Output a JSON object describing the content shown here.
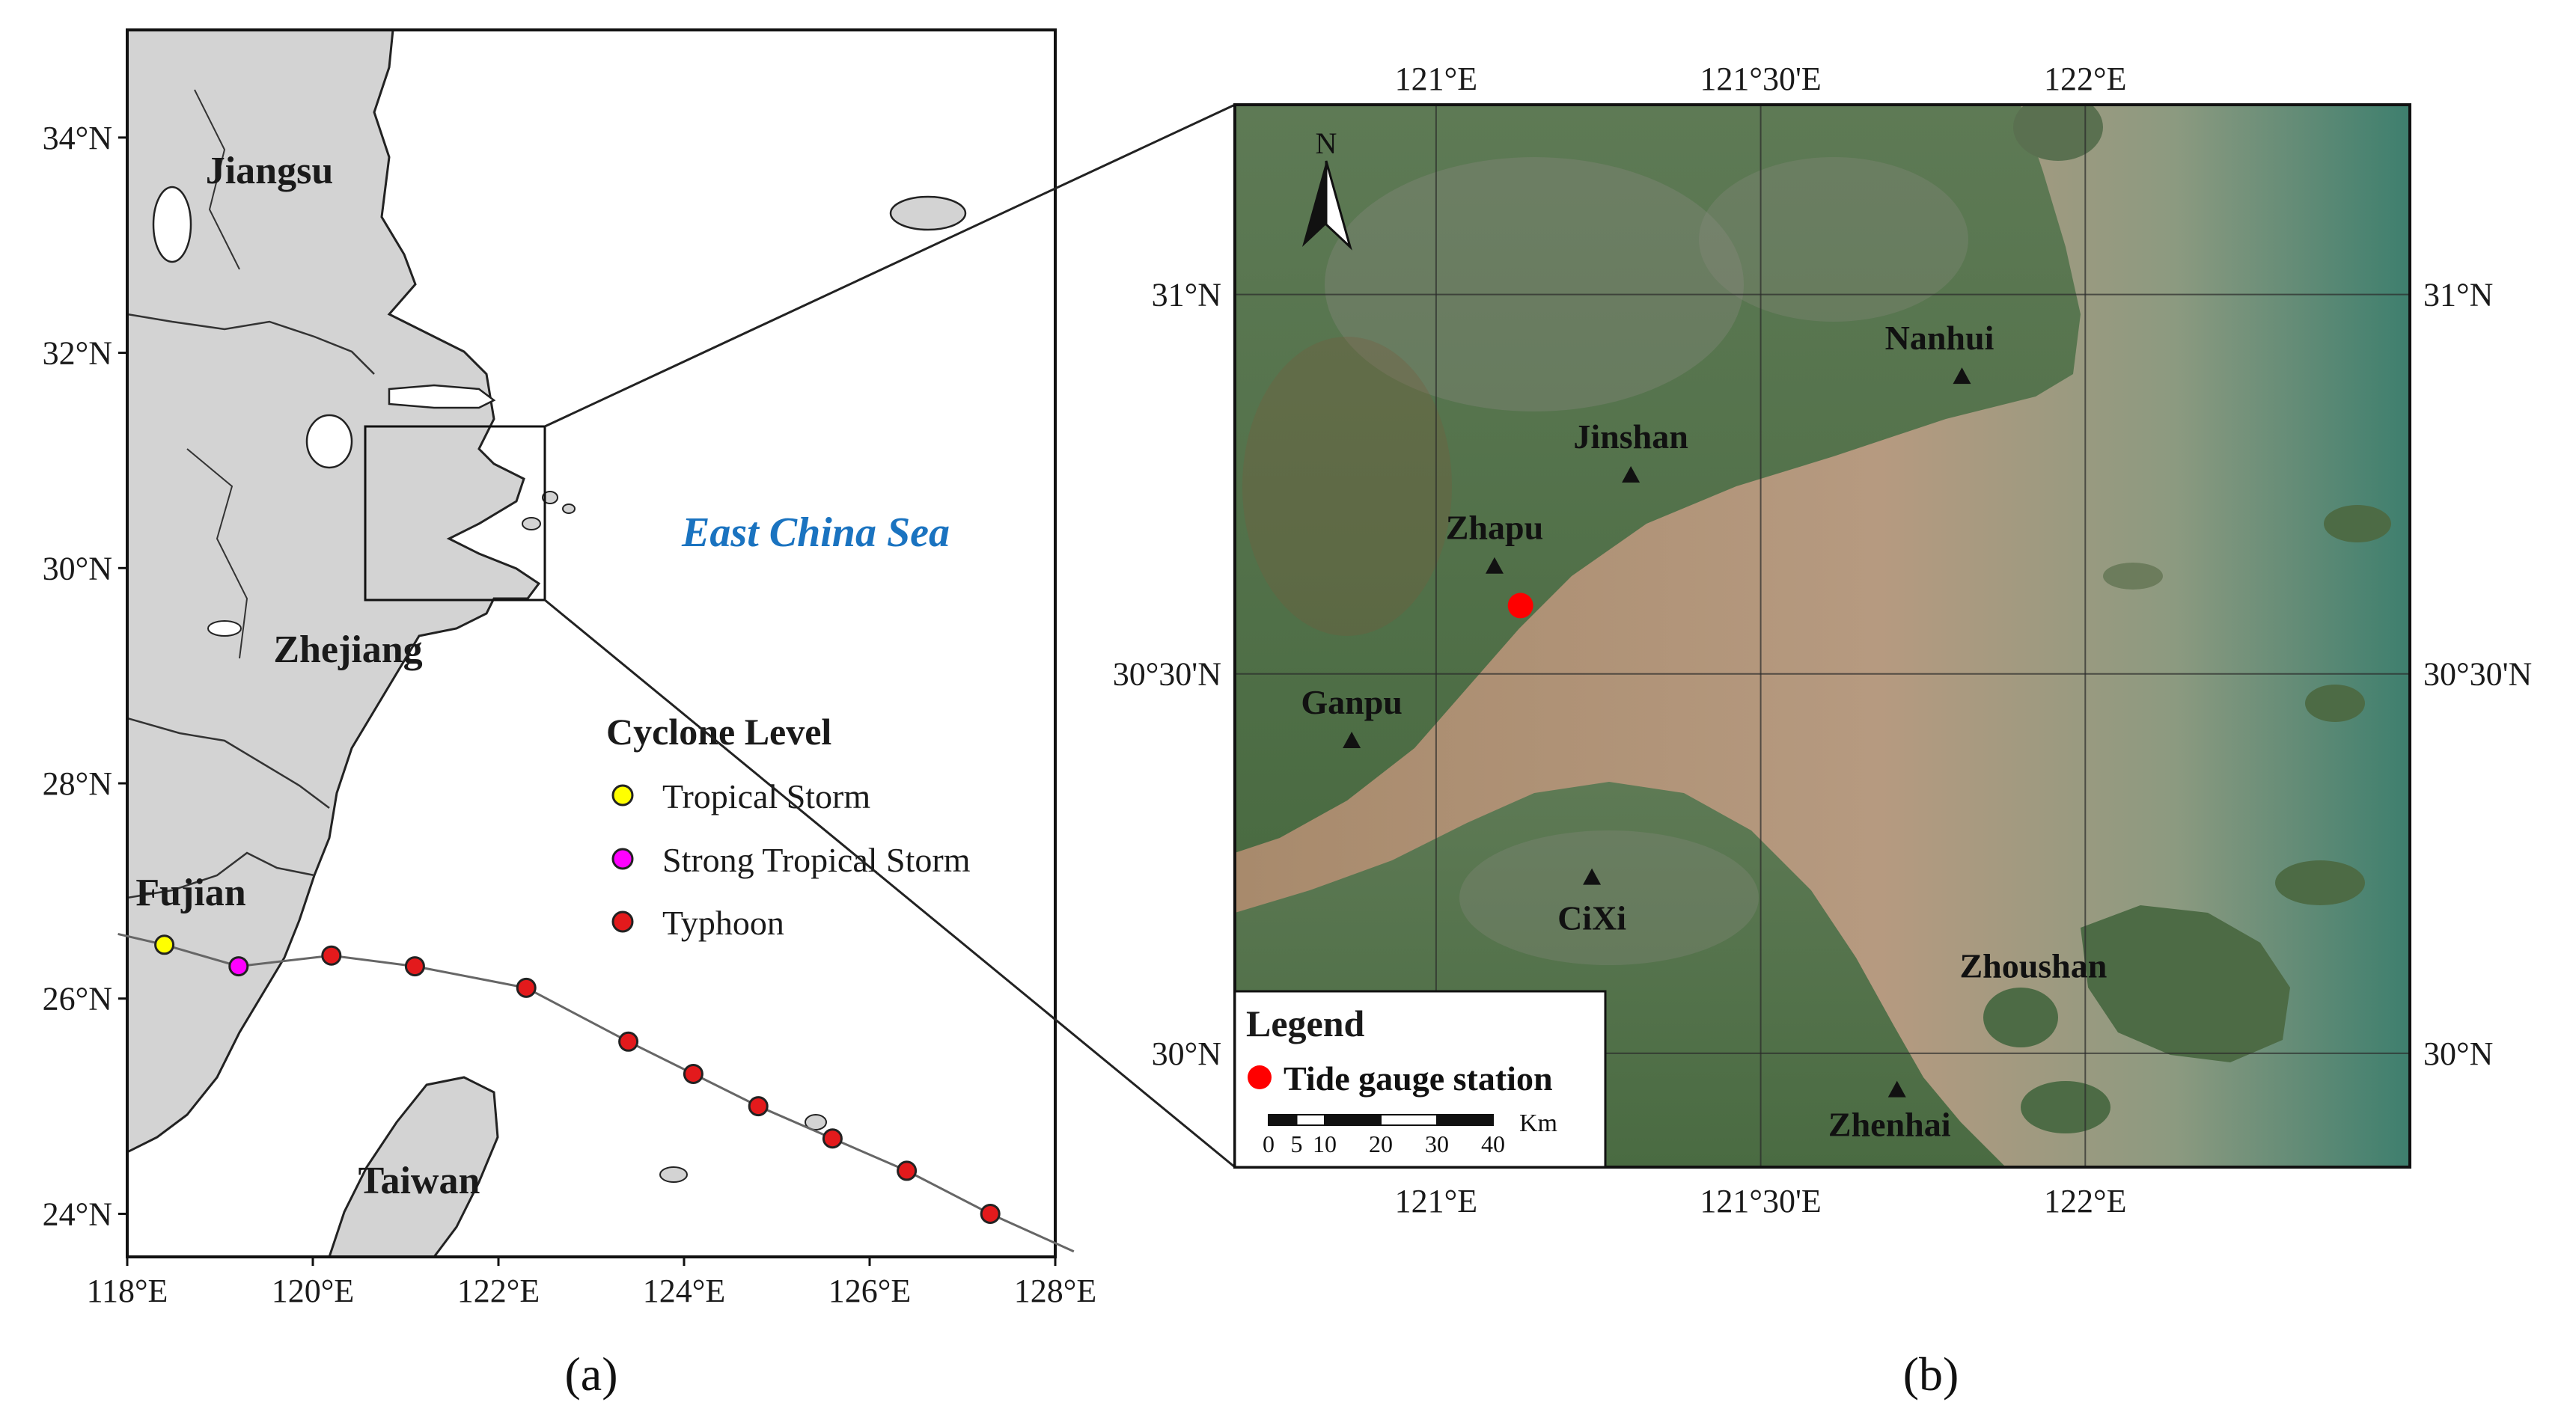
{
  "panel_a": {
    "label": "(a)",
    "x_ticks": [
      "118°E",
      "120°E",
      "122°E",
      "124°E",
      "126°E",
      "128°E"
    ],
    "y_ticks": [
      "34°N",
      "32°N",
      "30°N",
      "28°N",
      "26°N",
      "24°N"
    ],
    "provinces": [
      "Jiangsu",
      "Zhejiang",
      "Fujian",
      "Taiwan"
    ],
    "sea_label": "East China Sea",
    "legend": {
      "title": "Cyclone Level",
      "items": [
        {
          "label": "Tropical Storm",
          "color": "#ffff00"
        },
        {
          "label": "Strong Tropical Storm",
          "color": "#ff00ff"
        },
        {
          "label": "Typhoon",
          "color": "#e31a1c"
        }
      ]
    },
    "track": [
      {
        "lon": 118.4,
        "lat": 26.5,
        "level": 0
      },
      {
        "lon": 119.2,
        "lat": 26.3,
        "level": 1
      },
      {
        "lon": 120.2,
        "lat": 26.4,
        "level": 2
      },
      {
        "lon": 121.1,
        "lat": 26.3,
        "level": 2
      },
      {
        "lon": 122.3,
        "lat": 26.1,
        "level": 2
      },
      {
        "lon": 123.4,
        "lat": 25.6,
        "level": 2
      },
      {
        "lon": 124.1,
        "lat": 25.3,
        "level": 2
      },
      {
        "lon": 124.8,
        "lat": 25.0,
        "level": 2
      },
      {
        "lon": 125.6,
        "lat": 24.7,
        "level": 2
      },
      {
        "lon": 126.4,
        "lat": 24.4,
        "level": 2
      },
      {
        "lon": 127.3,
        "lat": 24.0,
        "level": 2
      }
    ]
  },
  "panel_b": {
    "label": "(b)",
    "x_ticks": [
      "121°E",
      "121°30'E",
      "122°E"
    ],
    "y_ticks": [
      "31°N",
      "30°30'N",
      "30°N"
    ],
    "north_arrow": "N",
    "places": [
      {
        "name": "Nanhui",
        "lon": 121.81,
        "lat": 30.89
      },
      {
        "name": "Jinshan",
        "lon": 121.3,
        "lat": 30.76
      },
      {
        "name": "Zhapu",
        "lon": 121.09,
        "lat": 30.64
      },
      {
        "name": "Ganpu",
        "lon": 120.87,
        "lat": 30.41
      },
      {
        "name": "CiXi",
        "lon": 121.24,
        "lat": 30.23
      },
      {
        "name": "Zhenhai",
        "lon": 121.71,
        "lat": 29.95
      },
      {
        "name": "Zhoushan",
        "lon": 121.92,
        "lat": 30.1
      }
    ],
    "station": {
      "lon": 121.13,
      "lat": 30.59
    },
    "legend": {
      "title": "Legend",
      "item": "Tide gauge station",
      "scale_unit": "Km",
      "scale_ticks": [
        "0",
        "5",
        "10",
        "20",
        "30",
        "40"
      ]
    }
  }
}
